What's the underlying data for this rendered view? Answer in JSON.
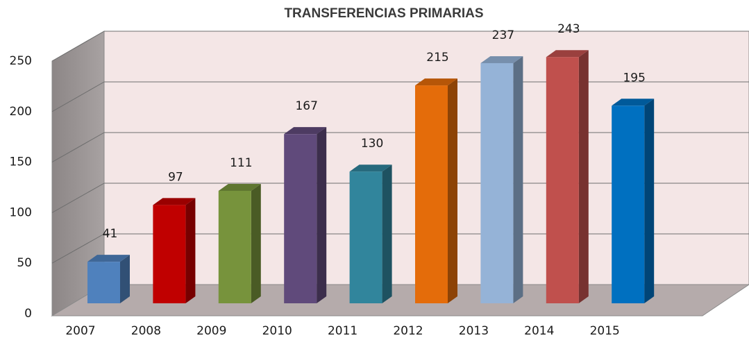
{
  "chart_data": {
    "type": "bar",
    "title": "TRANSFERENCIAS PRIMARIAS",
    "categories": [
      "2007",
      "2008",
      "2009",
      "2010",
      "2011",
      "2012",
      "2013",
      "2014",
      "2015"
    ],
    "values": [
      41,
      97,
      111,
      167,
      130,
      215,
      237,
      243,
      195
    ],
    "colors": [
      "#4f81bd",
      "#c00000",
      "#77933c",
      "#604a7b",
      "#31859c",
      "#e46c0a",
      "#95b3d7",
      "#c0504d",
      "#0070c0"
    ],
    "ylim": [
      0,
      250
    ],
    "yticks": [
      0,
      50,
      100,
      150,
      200,
      250
    ],
    "grid": true
  }
}
